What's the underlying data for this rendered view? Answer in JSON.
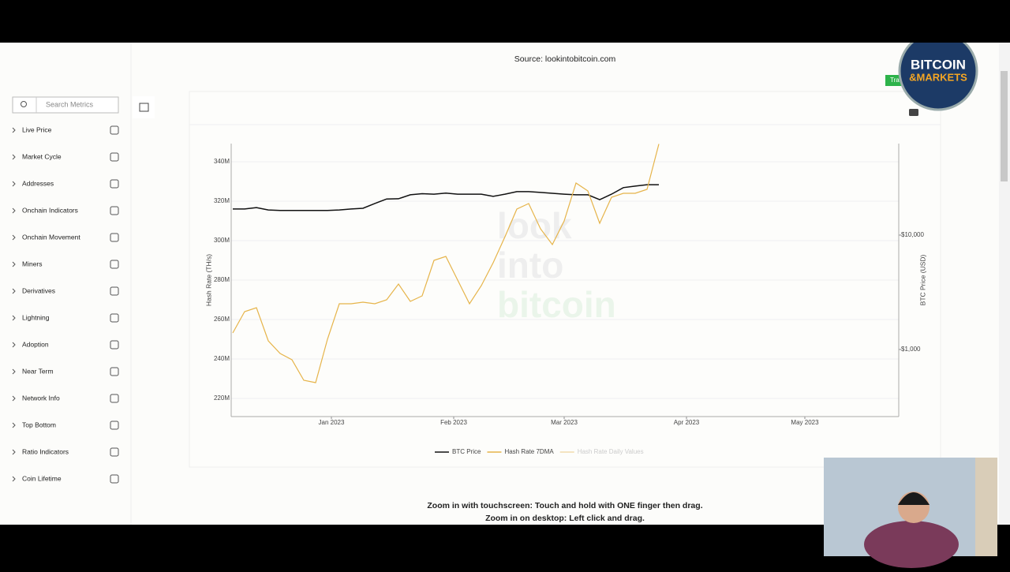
{
  "header": {
    "source": "Source: lookintobitcoin.com"
  },
  "sidebar": {
    "search_placeholder": "Search Metrics",
    "menu": [
      "Live Price",
      "Market Cycle",
      "Addresses",
      "Onchain Indicators",
      "Onchain Movement",
      "Miners",
      "Derivatives",
      "Lightning",
      "Adoption",
      "Near Term",
      "Network Info",
      "Top Bottom",
      "Ratio Indicators",
      "Coin Lifetime"
    ]
  },
  "chart_data": {
    "type": "line",
    "watermark": [
      "look",
      "into",
      "bitcoin"
    ],
    "ylabel": "Hash Rate (TH/s)",
    "y2label": "BTC Price (USD)",
    "x": [
      -25,
      -22,
      -19,
      -16,
      -13,
      -10,
      -7,
      -4,
      -1,
      2,
      5,
      8,
      11,
      14,
      17,
      20,
      23,
      26,
      29,
      32,
      35,
      38,
      41,
      44,
      47,
      50,
      53,
      56,
      59,
      62,
      65,
      68,
      71,
      74,
      77,
      80,
      83
    ],
    "xlim": [
      -25.4,
      143.8
    ],
    "xticks": [
      {
        "value": 0,
        "label": "Jan 2023"
      },
      {
        "value": 31,
        "label": "Feb 2023"
      },
      {
        "value": 59,
        "label": "Mar 2023"
      },
      {
        "value": 90,
        "label": "Apr 2023"
      },
      {
        "value": 120,
        "label": "May 2023"
      }
    ],
    "ylim": [
      210.8,
      349.2
    ],
    "yticks": [
      {
        "value": 220,
        "label": "220M"
      },
      {
        "value": 240,
        "label": "240M"
      },
      {
        "value": 260,
        "label": "260M"
      },
      {
        "value": 280,
        "label": "280M"
      },
      {
        "value": 300,
        "label": "300M"
      },
      {
        "value": 320,
        "label": "320M"
      },
      {
        "value": 340,
        "label": "340M"
      }
    ],
    "y2lim": [
      259,
      63100
    ],
    "y2log": true,
    "y2ticks": [
      {
        "value": 1000,
        "label": "$1,000"
      },
      {
        "value": 10000,
        "label": "$10,000"
      }
    ],
    "grid": true,
    "series": [
      {
        "name": "BTC Price",
        "color": "#111111",
        "axis": "y2",
        "values": [
          16900,
          16900,
          17400,
          16600,
          16400,
          16400,
          16400,
          16400,
          16400,
          16600,
          16900,
          17150,
          18900,
          20700,
          20800,
          22500,
          23000,
          22800,
          23300,
          22800,
          22800,
          22800,
          21800,
          22800,
          24000,
          24000,
          23600,
          23200,
          22800,
          22500,
          22500,
          20400,
          22800,
          26000,
          26800,
          27600,
          27600
        ]
      },
      {
        "name": "Hash Rate 7DMA",
        "color": "#e6b44a",
        "values": [
          253.2,
          264,
          266,
          249.2,
          242.8,
          239.6,
          229.2,
          228,
          250,
          268,
          268,
          268.8,
          268,
          270,
          278,
          269.2,
          272,
          290,
          292,
          280,
          268,
          277.2,
          288.8,
          302,
          316,
          318.8,
          306,
          298,
          310,
          329.2,
          325.2,
          308.8,
          322,
          324,
          324,
          326,
          349
        ]
      },
      {
        "name": "Hash Rate Daily Values",
        "color": "#f1dcae",
        "hidden": true,
        "values": [
          null,
          null,
          null,
          null,
          null,
          null,
          null,
          null,
          null,
          null,
          null,
          null,
          null,
          null,
          null,
          null,
          null,
          null,
          null,
          null,
          null,
          null,
          null,
          null,
          null,
          null,
          null,
          null,
          null,
          null,
          null,
          null,
          null,
          null,
          null,
          null,
          null
        ]
      }
    ]
  },
  "footer": {
    "lines": [
      "Zoom in with touchscreen: Touch and hold with ONE finger then drag.",
      "Zoom in on desktop: Left click and drag."
    ]
  },
  "overlay": {
    "logo": [
      "BITCOIN",
      "&MARKETS"
    ],
    "badge": "Tra"
  }
}
